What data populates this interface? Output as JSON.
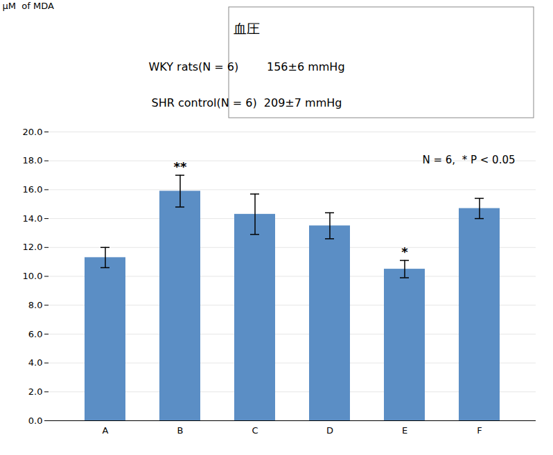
{
  "chart_data": {
    "type": "bar",
    "ylabel": "μM  of MDA",
    "categories": [
      "A",
      "B",
      "C",
      "D",
      "E",
      "F"
    ],
    "values": [
      11.3,
      15.9,
      14.3,
      13.5,
      10.5,
      14.7
    ],
    "errors": [
      0.7,
      1.1,
      1.4,
      0.9,
      0.6,
      0.7
    ],
    "color": "#5B8EC5",
    "ylim": [
      0,
      20.0
    ],
    "yticks": [
      {
        "value": 0,
        "label": "0.0"
      },
      {
        "value": 2,
        "label": "2.0"
      },
      {
        "value": 4,
        "label": "4.0"
      },
      {
        "value": 6,
        "label": "6.0"
      },
      {
        "value": 8,
        "label": "8.0"
      },
      {
        "value": 10,
        "label": "10.0"
      },
      {
        "value": 12,
        "label": "12.0"
      },
      {
        "value": 14,
        "label": "14.0"
      },
      {
        "value": 16,
        "label": "16.0"
      },
      {
        "value": 18,
        "label": "18.0"
      },
      {
        "value": 20,
        "label": "20.0"
      }
    ],
    "grid": true,
    "annotations": [
      {
        "x": "B",
        "text": "**"
      },
      {
        "x": "E",
        "text": "*"
      },
      {
        "text": "N = 6,  * P < 0.05"
      }
    ],
    "box": {
      "title": "血圧",
      "lines": [
        "WKY rats(N = 6)        156±6 mmHg",
        "SHR control(N = 6)  209±7 mmHg"
      ]
    }
  }
}
